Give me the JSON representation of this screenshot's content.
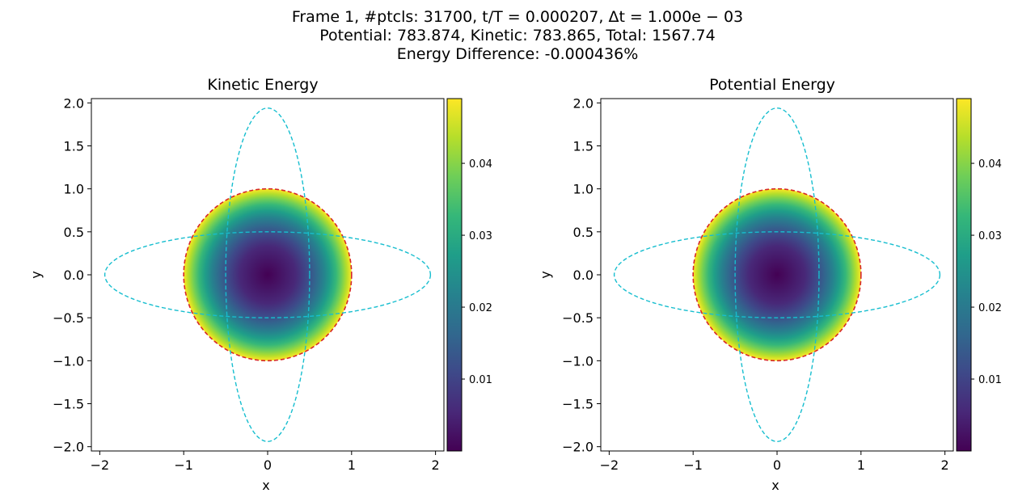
{
  "header": {
    "line1": "Frame 1, #ptcls: 31700, t/T = 0.000207, Δt = 1.000e − 03",
    "line2": "Potential: 783.874, Kinetic: 783.865, Total: 1567.74",
    "line3": "Energy Difference: -0.000436%"
  },
  "colors": {
    "circle": "#d62728",
    "ellipse": "#17becf",
    "viridis": [
      "#440154",
      "#482878",
      "#3e4989",
      "#31688e",
      "#26828e",
      "#1f9e89",
      "#35b779",
      "#6ece58",
      "#b5de2b",
      "#fde725"
    ]
  },
  "chart_data": [
    {
      "type": "heatmap",
      "title": "Kinetic Energy",
      "xlabel": "x",
      "ylabel": "y",
      "xlim": [
        -2.1,
        2.1
      ],
      "ylim": [
        -2.05,
        2.05
      ],
      "xticks": [
        -2,
        -1,
        0,
        1,
        2
      ],
      "xtick_labels": [
        "−2",
        "−1",
        "0",
        "1",
        "2"
      ],
      "yticks": [
        2.0,
        1.5,
        1.0,
        0.5,
        0.0,
        -0.5,
        -1.0,
        -1.5,
        -2.0
      ],
      "ytick_labels": [
        "2.0",
        "1.5",
        "1.0",
        "0.5",
        "0.0",
        "−0.5",
        "−1.0",
        "−1.5",
        "−2.0"
      ],
      "colorbar": {
        "cmap": "viridis",
        "min": 0.0,
        "max": 0.049,
        "ticks": [
          0.01,
          0.02,
          0.03,
          0.04
        ],
        "tick_labels": [
          "0.01",
          "0.02",
          "0.03",
          "0.04"
        ]
      },
      "field": {
        "shape": "disk",
        "radius": 1.0,
        "value_at_center": 0.0,
        "value_at_edge": 0.049
      },
      "overlays": [
        {
          "kind": "circle",
          "cx": 0,
          "cy": 0,
          "r": 1.0,
          "style": "dashed",
          "color": "#d62728"
        },
        {
          "kind": "ellipse",
          "cx": 0,
          "cy": 0,
          "rx": 1.94,
          "ry": 0.5,
          "style": "dashed",
          "color": "#17becf"
        },
        {
          "kind": "ellipse",
          "cx": 0,
          "cy": 0,
          "rx": 0.5,
          "ry": 1.94,
          "style": "dashed",
          "color": "#17becf"
        }
      ]
    },
    {
      "type": "heatmap",
      "title": "Potential Energy",
      "xlabel": "x",
      "ylabel": "y",
      "xlim": [
        -2.1,
        2.1
      ],
      "ylim": [
        -2.05,
        2.05
      ],
      "xticks": [
        -2,
        -1,
        0,
        1,
        2
      ],
      "xtick_labels": [
        "−2",
        "−1",
        "0",
        "1",
        "2"
      ],
      "yticks": [
        2.0,
        1.5,
        1.0,
        0.5,
        0.0,
        -0.5,
        -1.0,
        -1.5,
        -2.0
      ],
      "ytick_labels": [
        "2.0",
        "1.5",
        "1.0",
        "0.5",
        "0.0",
        "−0.5",
        "−1.0",
        "−1.5",
        "−2.0"
      ],
      "colorbar": {
        "cmap": "viridis",
        "min": 0.0,
        "max": 0.049,
        "ticks": [
          0.01,
          0.02,
          0.03,
          0.04
        ],
        "tick_labels": [
          "0.01",
          "0.02",
          "0.03",
          "0.04"
        ]
      },
      "field": {
        "shape": "disk",
        "radius": 1.0,
        "value_at_center": 0.0,
        "value_at_edge": 0.049
      },
      "overlays": [
        {
          "kind": "circle",
          "cx": 0,
          "cy": 0,
          "r": 1.0,
          "style": "dashed",
          "color": "#d62728"
        },
        {
          "kind": "ellipse",
          "cx": 0,
          "cy": 0,
          "rx": 1.94,
          "ry": 0.5,
          "style": "dashed",
          "color": "#17becf"
        },
        {
          "kind": "ellipse",
          "cx": 0,
          "cy": 0,
          "rx": 0.5,
          "ry": 1.94,
          "style": "dashed",
          "color": "#17becf"
        }
      ]
    }
  ]
}
